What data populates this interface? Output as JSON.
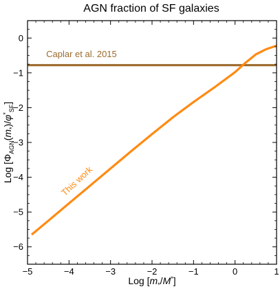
{
  "chart_data": {
    "type": "line",
    "title": "AGN fraction of SF galaxies",
    "xlabel": "Log [m*/M*]",
    "ylabel": "Log [ΦAGN(m*)/φ*SF]",
    "xlim": [
      -5,
      1
    ],
    "ylim": [
      -6.5,
      0.5
    ],
    "xticks": [
      -5,
      -4,
      -3,
      -2,
      -1,
      0,
      1
    ],
    "yticks": [
      -6,
      -5,
      -4,
      -3,
      -2,
      -1,
      0
    ],
    "xtick_labels": [
      "−5",
      "−4",
      "−3",
      "−2",
      "−1",
      "0",
      "1"
    ],
    "ytick_labels": [
      "−6",
      "−5",
      "−4",
      "−3",
      "−2",
      "−1",
      "0"
    ],
    "grid": false,
    "series": [
      {
        "name": "This work",
        "color": "#ff8a12",
        "x": [
          -4.9,
          -4.5,
          -4.0,
          -3.5,
          -3.0,
          -2.5,
          -2.0,
          -1.5,
          -1.0,
          -0.5,
          0.0,
          0.25,
          0.5,
          0.75,
          1.0
        ],
        "y": [
          -5.65,
          -5.25,
          -4.75,
          -4.25,
          -3.75,
          -3.25,
          -2.76,
          -2.28,
          -1.84,
          -1.42,
          -0.98,
          -0.71,
          -0.47,
          -0.32,
          -0.22
        ]
      },
      {
        "name": "Caplar et al. 2015",
        "color": "#9c6a2c",
        "x": [
          -5,
          1
        ],
        "y": [
          -0.78,
          -0.78
        ]
      }
    ],
    "annotations": [
      {
        "text": "This work",
        "x": -4.1,
        "y": -4.55,
        "color": "#ff8a12",
        "angle": -43
      },
      {
        "text": "Caplar et al. 2015",
        "x": -4.55,
        "y": -0.55,
        "color": "#9c6a2c"
      }
    ]
  }
}
